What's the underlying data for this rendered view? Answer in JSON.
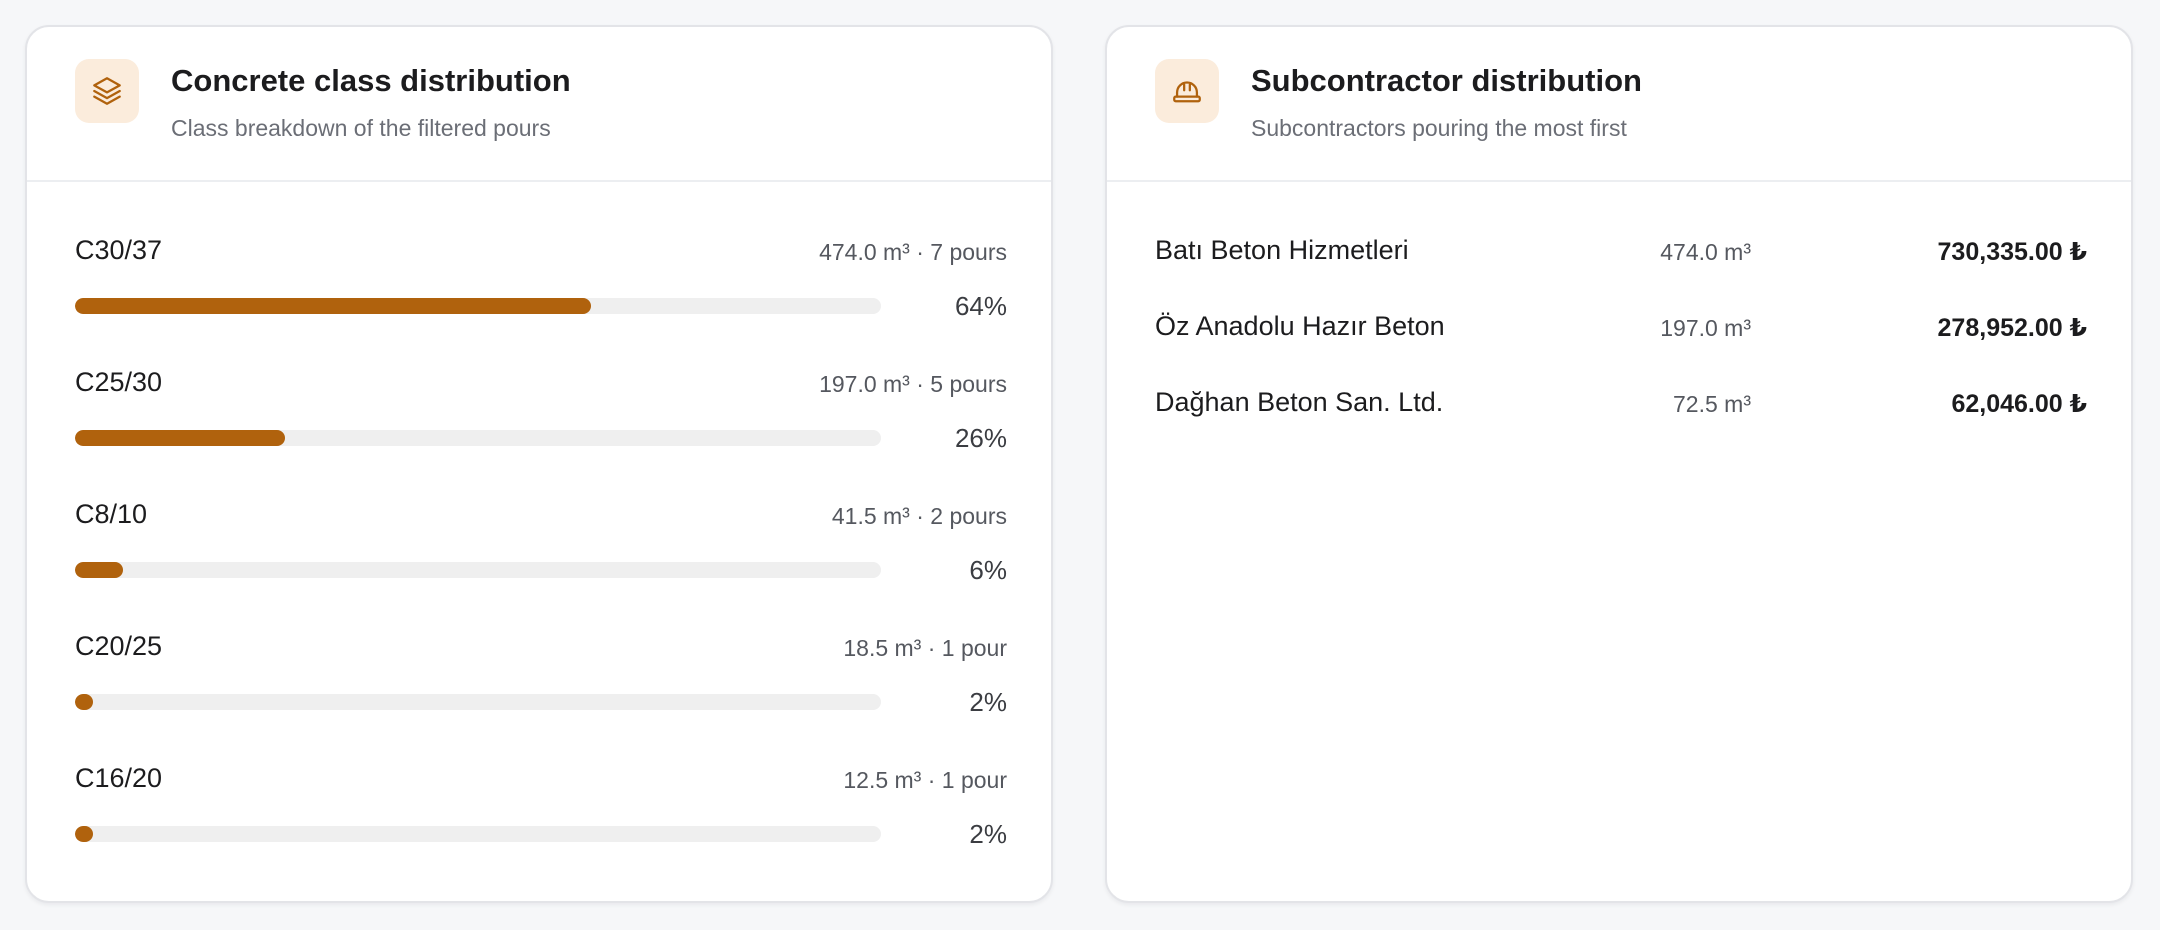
{
  "class_card": {
    "title": "Concrete class distribution",
    "subtitle": "Class breakdown of the filtered pours",
    "icon": "layers-icon",
    "accent": "#b0620d",
    "items": [
      {
        "class": "C30/37",
        "meta": "474.0 m³ · 7 pours",
        "percent_label": "64%",
        "share": 0.64
      },
      {
        "class": "C25/30",
        "meta": "197.0 m³ · 5 pours",
        "percent_label": "26%",
        "share": 0.26
      },
      {
        "class": "C8/10",
        "meta": "41.5 m³ · 2 pours",
        "percent_label": "6%",
        "share": 0.06
      },
      {
        "class": "C20/25",
        "meta": "18.5 m³ · 1 pour",
        "percent_label": "2%",
        "share": 0.02
      },
      {
        "class": "C16/20",
        "meta": "12.5 m³ · 1 pour",
        "percent_label": "2%",
        "share": 0.02
      }
    ]
  },
  "subcontractor_card": {
    "title": "Subcontractor distribution",
    "subtitle": "Subcontractors pouring the most first",
    "icon": "hard-hat-icon",
    "items": [
      {
        "name": "Batı Beton Hizmetleri",
        "volume": "474.0 m³",
        "amount": "730,335.00 ₺"
      },
      {
        "name": "Öz Anadolu Hazır Beton",
        "volume": "197.0 m³",
        "amount": "278,952.00 ₺"
      },
      {
        "name": "Dağhan Beton San. Ltd.",
        "volume": "72.5 m³",
        "amount": "62,046.00 ₺"
      }
    ]
  }
}
